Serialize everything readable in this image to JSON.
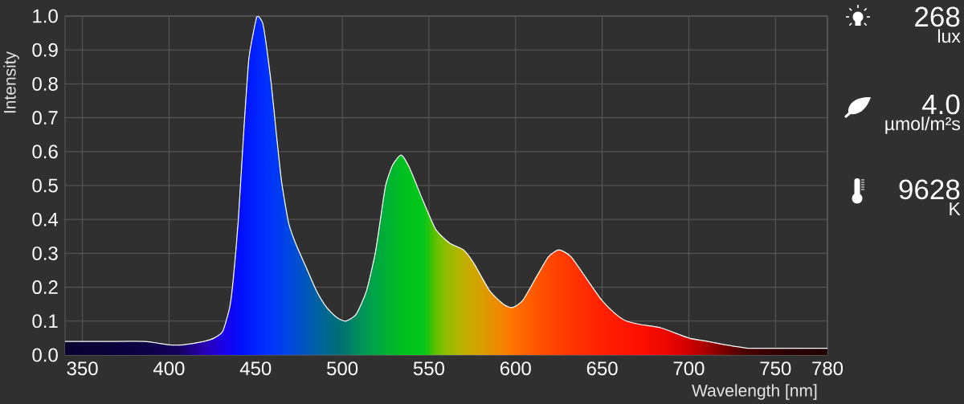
{
  "chart_data": [
    {
      "type": "area",
      "xlabel": "Wavelength [nm]",
      "ylabel": "Intensity",
      "x": [
        340,
        350,
        364,
        386,
        400,
        408,
        420,
        426,
        431,
        435,
        437,
        440,
        443,
        446,
        449,
        451,
        454,
        456,
        459,
        462,
        465,
        469,
        473,
        479,
        485,
        491,
        497,
        502,
        508,
        514,
        519,
        522,
        525,
        529,
        534,
        539,
        547,
        554,
        562,
        570,
        576,
        585,
        593,
        598,
        604,
        612,
        619,
        625,
        632,
        643,
        650,
        658,
        664,
        672,
        684,
        700,
        711,
        721,
        734,
        749,
        765,
        780
      ],
      "values": [
        0.04,
        0.04,
        0.04,
        0.04,
        0.03,
        0.03,
        0.04,
        0.05,
        0.07,
        0.14,
        0.22,
        0.4,
        0.65,
        0.87,
        0.96,
        1.0,
        0.98,
        0.92,
        0.8,
        0.65,
        0.51,
        0.39,
        0.33,
        0.26,
        0.19,
        0.14,
        0.11,
        0.1,
        0.12,
        0.19,
        0.3,
        0.4,
        0.5,
        0.56,
        0.59,
        0.55,
        0.45,
        0.37,
        0.33,
        0.31,
        0.27,
        0.19,
        0.15,
        0.14,
        0.16,
        0.23,
        0.29,
        0.31,
        0.29,
        0.21,
        0.16,
        0.12,
        0.1,
        0.09,
        0.08,
        0.05,
        0.04,
        0.03,
        0.02,
        0.02,
        0.02,
        0.02
      ],
      "color": "#ffffff",
      "xlim": [
        340,
        780
      ],
      "ylim": [
        0,
        1
      ],
      "xticks": [
        350,
        400,
        450,
        500,
        550,
        600,
        650,
        700,
        750,
        780
      ],
      "yticks": [
        {
          "value": 0,
          "label": "0.0"
        },
        {
          "value": 0.1,
          "label": "0.1"
        },
        {
          "value": 0.2,
          "label": "0.2"
        },
        {
          "value": 0.3,
          "label": "0.3"
        },
        {
          "value": 0.4,
          "label": "0.4"
        },
        {
          "value": 0.5,
          "label": "0.5"
        },
        {
          "value": 0.6,
          "label": "0.6"
        },
        {
          "value": 0.7,
          "label": "0.7"
        },
        {
          "value": 0.8,
          "label": "0.8"
        },
        {
          "value": 0.9,
          "label": "0.9"
        },
        {
          "value": 1,
          "label": "1.0"
        }
      ],
      "grid": true
    },
    {
      "type": "other",
      "annotations": [
        "268",
        "lux",
        "4.0",
        "µmol/m²s",
        "9628",
        "K"
      ]
    }
  ]
}
